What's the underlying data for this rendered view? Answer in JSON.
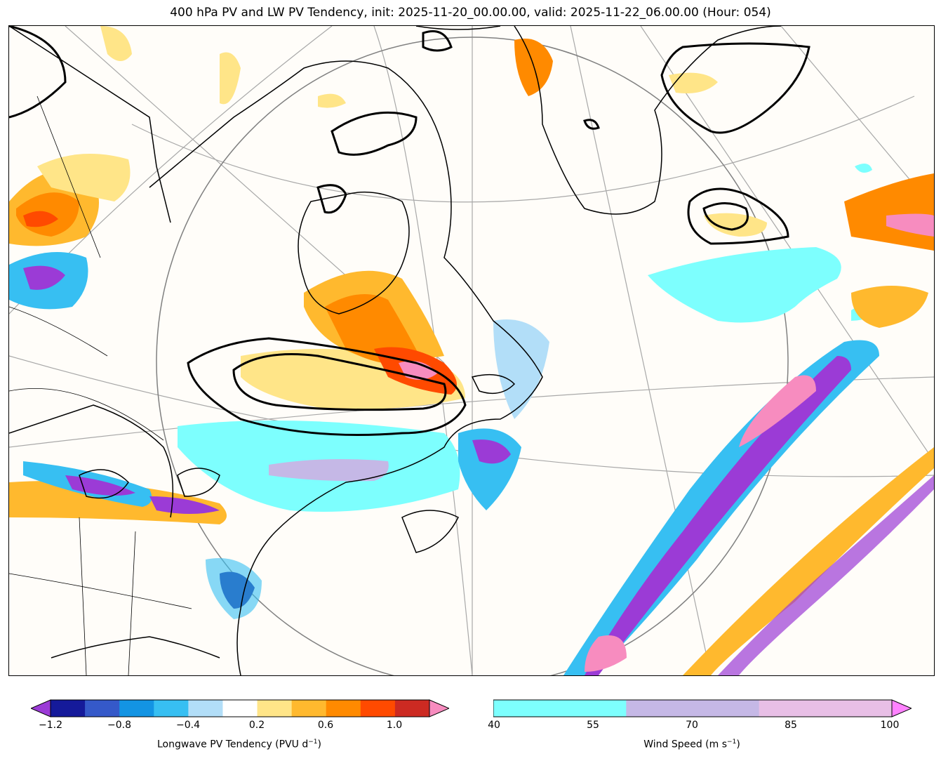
{
  "title": "400 hPa PV and LW PV Tendency, init: 2025-11-20_00.00.00, valid: 2025-11-22_06.00.00 (Hour: 054)",
  "colors": {
    "pv_tendency": [
      "#9b3bd6",
      "#151a9a",
      "#3559c9",
      "#1394e3",
      "#37bff2",
      "#b2def8",
      "#ffffff",
      "#ffe588",
      "#ffb92e",
      "#ff8a00",
      "#ff4a00",
      "#cc2a22",
      "#f78cbf"
    ],
    "wind_speed": [
      "#7dfffe",
      "#c5b8e6",
      "#e8bfe6",
      "#ff82ff"
    ],
    "pv_contour": "#000000",
    "coastline": "#000000",
    "grid": "#a8a8a8"
  },
  "colorbar_pv": {
    "ticks": [
      "−1.2",
      "−0.8",
      "−0.4",
      "0.2",
      "0.6",
      "1.0"
    ],
    "label": "Longwave PV Tendency (PVU d",
    "label_sup": "−1",
    "label_end": ")"
  },
  "colorbar_wind": {
    "ticks": [
      "40",
      "55",
      "70",
      "85",
      "100"
    ],
    "label": "Wind Speed (m s",
    "label_sup": "−1",
    "label_end": ")"
  }
}
